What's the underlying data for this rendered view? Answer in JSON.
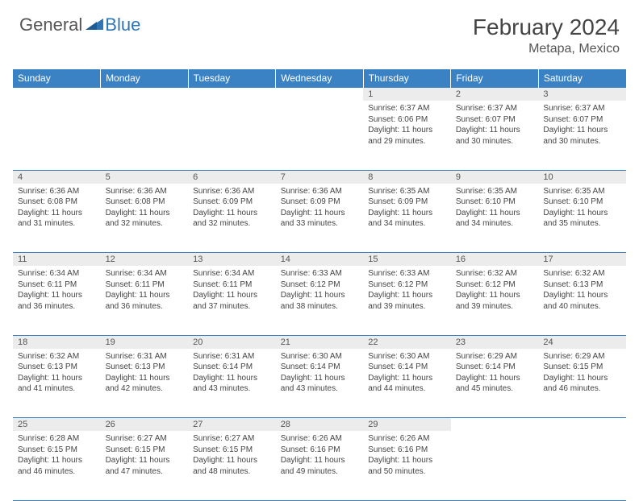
{
  "logo": {
    "general": "General",
    "blue": "Blue"
  },
  "title": "February 2024",
  "subtitle": "Metapa, Mexico",
  "colors": {
    "header_bg": "#3b82c4",
    "header_text": "#ffffff",
    "daynum_bg": "#ececec",
    "border": "#3b82c4",
    "text": "#444444",
    "logo_gray": "#555555",
    "logo_blue": "#2e75b6"
  },
  "day_headers": [
    "Sunday",
    "Monday",
    "Tuesday",
    "Wednesday",
    "Thursday",
    "Friday",
    "Saturday"
  ],
  "weeks": [
    {
      "nums": [
        "",
        "",
        "",
        "",
        "1",
        "2",
        "3"
      ],
      "cells": [
        null,
        null,
        null,
        null,
        {
          "sunrise": "Sunrise: 6:37 AM",
          "sunset": "Sunset: 6:06 PM",
          "daylight": "Daylight: 11 hours and 29 minutes."
        },
        {
          "sunrise": "Sunrise: 6:37 AM",
          "sunset": "Sunset: 6:07 PM",
          "daylight": "Daylight: 11 hours and 30 minutes."
        },
        {
          "sunrise": "Sunrise: 6:37 AM",
          "sunset": "Sunset: 6:07 PM",
          "daylight": "Daylight: 11 hours and 30 minutes."
        }
      ]
    },
    {
      "nums": [
        "4",
        "5",
        "6",
        "7",
        "8",
        "9",
        "10"
      ],
      "cells": [
        {
          "sunrise": "Sunrise: 6:36 AM",
          "sunset": "Sunset: 6:08 PM",
          "daylight": "Daylight: 11 hours and 31 minutes."
        },
        {
          "sunrise": "Sunrise: 6:36 AM",
          "sunset": "Sunset: 6:08 PM",
          "daylight": "Daylight: 11 hours and 32 minutes."
        },
        {
          "sunrise": "Sunrise: 6:36 AM",
          "sunset": "Sunset: 6:09 PM",
          "daylight": "Daylight: 11 hours and 32 minutes."
        },
        {
          "sunrise": "Sunrise: 6:36 AM",
          "sunset": "Sunset: 6:09 PM",
          "daylight": "Daylight: 11 hours and 33 minutes."
        },
        {
          "sunrise": "Sunrise: 6:35 AM",
          "sunset": "Sunset: 6:09 PM",
          "daylight": "Daylight: 11 hours and 34 minutes."
        },
        {
          "sunrise": "Sunrise: 6:35 AM",
          "sunset": "Sunset: 6:10 PM",
          "daylight": "Daylight: 11 hours and 34 minutes."
        },
        {
          "sunrise": "Sunrise: 6:35 AM",
          "sunset": "Sunset: 6:10 PM",
          "daylight": "Daylight: 11 hours and 35 minutes."
        }
      ]
    },
    {
      "nums": [
        "11",
        "12",
        "13",
        "14",
        "15",
        "16",
        "17"
      ],
      "cells": [
        {
          "sunrise": "Sunrise: 6:34 AM",
          "sunset": "Sunset: 6:11 PM",
          "daylight": "Daylight: 11 hours and 36 minutes."
        },
        {
          "sunrise": "Sunrise: 6:34 AM",
          "sunset": "Sunset: 6:11 PM",
          "daylight": "Daylight: 11 hours and 36 minutes."
        },
        {
          "sunrise": "Sunrise: 6:34 AM",
          "sunset": "Sunset: 6:11 PM",
          "daylight": "Daylight: 11 hours and 37 minutes."
        },
        {
          "sunrise": "Sunrise: 6:33 AM",
          "sunset": "Sunset: 6:12 PM",
          "daylight": "Daylight: 11 hours and 38 minutes."
        },
        {
          "sunrise": "Sunrise: 6:33 AM",
          "sunset": "Sunset: 6:12 PM",
          "daylight": "Daylight: 11 hours and 39 minutes."
        },
        {
          "sunrise": "Sunrise: 6:32 AM",
          "sunset": "Sunset: 6:12 PM",
          "daylight": "Daylight: 11 hours and 39 minutes."
        },
        {
          "sunrise": "Sunrise: 6:32 AM",
          "sunset": "Sunset: 6:13 PM",
          "daylight": "Daylight: 11 hours and 40 minutes."
        }
      ]
    },
    {
      "nums": [
        "18",
        "19",
        "20",
        "21",
        "22",
        "23",
        "24"
      ],
      "cells": [
        {
          "sunrise": "Sunrise: 6:32 AM",
          "sunset": "Sunset: 6:13 PM",
          "daylight": "Daylight: 11 hours and 41 minutes."
        },
        {
          "sunrise": "Sunrise: 6:31 AM",
          "sunset": "Sunset: 6:13 PM",
          "daylight": "Daylight: 11 hours and 42 minutes."
        },
        {
          "sunrise": "Sunrise: 6:31 AM",
          "sunset": "Sunset: 6:14 PM",
          "daylight": "Daylight: 11 hours and 43 minutes."
        },
        {
          "sunrise": "Sunrise: 6:30 AM",
          "sunset": "Sunset: 6:14 PM",
          "daylight": "Daylight: 11 hours and 43 minutes."
        },
        {
          "sunrise": "Sunrise: 6:30 AM",
          "sunset": "Sunset: 6:14 PM",
          "daylight": "Daylight: 11 hours and 44 minutes."
        },
        {
          "sunrise": "Sunrise: 6:29 AM",
          "sunset": "Sunset: 6:14 PM",
          "daylight": "Daylight: 11 hours and 45 minutes."
        },
        {
          "sunrise": "Sunrise: 6:29 AM",
          "sunset": "Sunset: 6:15 PM",
          "daylight": "Daylight: 11 hours and 46 minutes."
        }
      ]
    },
    {
      "nums": [
        "25",
        "26",
        "27",
        "28",
        "29",
        "",
        ""
      ],
      "cells": [
        {
          "sunrise": "Sunrise: 6:28 AM",
          "sunset": "Sunset: 6:15 PM",
          "daylight": "Daylight: 11 hours and 46 minutes."
        },
        {
          "sunrise": "Sunrise: 6:27 AM",
          "sunset": "Sunset: 6:15 PM",
          "daylight": "Daylight: 11 hours and 47 minutes."
        },
        {
          "sunrise": "Sunrise: 6:27 AM",
          "sunset": "Sunset: 6:15 PM",
          "daylight": "Daylight: 11 hours and 48 minutes."
        },
        {
          "sunrise": "Sunrise: 6:26 AM",
          "sunset": "Sunset: 6:16 PM",
          "daylight": "Daylight: 11 hours and 49 minutes."
        },
        {
          "sunrise": "Sunrise: 6:26 AM",
          "sunset": "Sunset: 6:16 PM",
          "daylight": "Daylight: 11 hours and 50 minutes."
        },
        null,
        null
      ]
    }
  ]
}
